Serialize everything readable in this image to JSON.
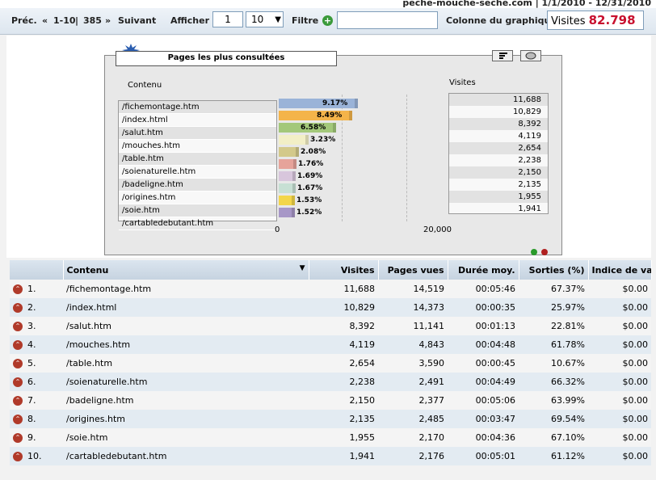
{
  "header": {
    "site": "peche-mouche-seche.com  |  1/1/2010 - 12/31/2010"
  },
  "toolbar": {
    "prev_label": "Préc.",
    "range_label": "1-10",
    "total_label": "385",
    "next_label": "Suivant",
    "show_label": "Afficher",
    "page_value": "1",
    "per_page_value": "10",
    "filter_label": "Filtre",
    "filter_value": "",
    "column_label": "Colonne du graphique",
    "column_select_label": "Visites",
    "column_select_value": "82.798"
  },
  "chart_data": {
    "type": "bar",
    "title": "Pages les plus consultées",
    "xlabel": "Contenu",
    "ylabel": "Visites",
    "categories": [
      "/fichemontage.htm",
      "/index.html",
      "/salut.htm",
      "/mouches.htm",
      "/table.htm",
      "/soienaturelle.htm",
      "/badeligne.htm",
      "/origines.htm",
      "/soie.htm",
      "/cartabledebutant.htm"
    ],
    "values": [
      11688,
      10829,
      8392,
      4119,
      2654,
      2238,
      2150,
      2135,
      1955,
      1941
    ],
    "value_labels": [
      "11,688",
      "10,829",
      "8,392",
      "4,119",
      "2,654",
      "2,238",
      "2,150",
      "2,135",
      "1,955",
      "1,941"
    ],
    "percent_labels": [
      "9.17%",
      "8.49%",
      "6.58%",
      "3.23%",
      "2.08%",
      "1.76%",
      "1.69%",
      "1.67%",
      "1.53%",
      "1.52%"
    ],
    "xlim": [
      0,
      25000
    ],
    "ticks": [
      "0",
      "20,000"
    ],
    "colors": [
      "#9ab3d8",
      "#f4b44a",
      "#a3c87a",
      "#f2efc6",
      "#d3c98a",
      "#e6a39a",
      "#d8c6dc",
      "#c7e0d4",
      "#f3d64a",
      "#a797c7",
      "#8fd09c"
    ]
  },
  "table": {
    "headers": [
      "Contenu",
      "Visites",
      "Pages vues",
      "Durée moy.",
      "Sorties (%)",
      "Indice de vale"
    ],
    "rows": [
      {
        "n": "1.",
        "page": "/fichemontage.htm",
        "visites": "11,688",
        "vues": "14,519",
        "duree": "00:05:46",
        "sorties": "67.37%",
        "indice": "$0.00"
      },
      {
        "n": "2.",
        "page": "/index.html",
        "visites": "10,829",
        "vues": "14,373",
        "duree": "00:00:35",
        "sorties": "25.97%",
        "indice": "$0.00"
      },
      {
        "n": "3.",
        "page": "/salut.htm",
        "visites": "8,392",
        "vues": "11,141",
        "duree": "00:01:13",
        "sorties": "22.81%",
        "indice": "$0.00"
      },
      {
        "n": "4.",
        "page": "/mouches.htm",
        "visites": "4,119",
        "vues": "4,843",
        "duree": "00:04:48",
        "sorties": "61.78%",
        "indice": "$0.00"
      },
      {
        "n": "5.",
        "page": "/table.htm",
        "visites": "2,654",
        "vues": "3,590",
        "duree": "00:00:45",
        "sorties": "10.67%",
        "indice": "$0.00"
      },
      {
        "n": "6.",
        "page": "/soienaturelle.htm",
        "visites": "2,238",
        "vues": "2,491",
        "duree": "00:04:49",
        "sorties": "66.32%",
        "indice": "$0.00"
      },
      {
        "n": "7.",
        "page": "/badeligne.htm",
        "visites": "2,150",
        "vues": "2,377",
        "duree": "00:05:06",
        "sorties": "63.99%",
        "indice": "$0.00"
      },
      {
        "n": "8.",
        "page": "/origines.htm",
        "visites": "2,135",
        "vues": "2,485",
        "duree": "00:03:47",
        "sorties": "69.54%",
        "indice": "$0.00"
      },
      {
        "n": "9.",
        "page": "/soie.htm",
        "visites": "1,955",
        "vues": "2,170",
        "duree": "00:04:36",
        "sorties": "67.10%",
        "indice": "$0.00"
      },
      {
        "n": "10.",
        "page": "/cartabledebutant.htm",
        "visites": "1,941",
        "vues": "2,176",
        "duree": "00:05:01",
        "sorties": "61.12%",
        "indice": "$0.00"
      }
    ]
  }
}
